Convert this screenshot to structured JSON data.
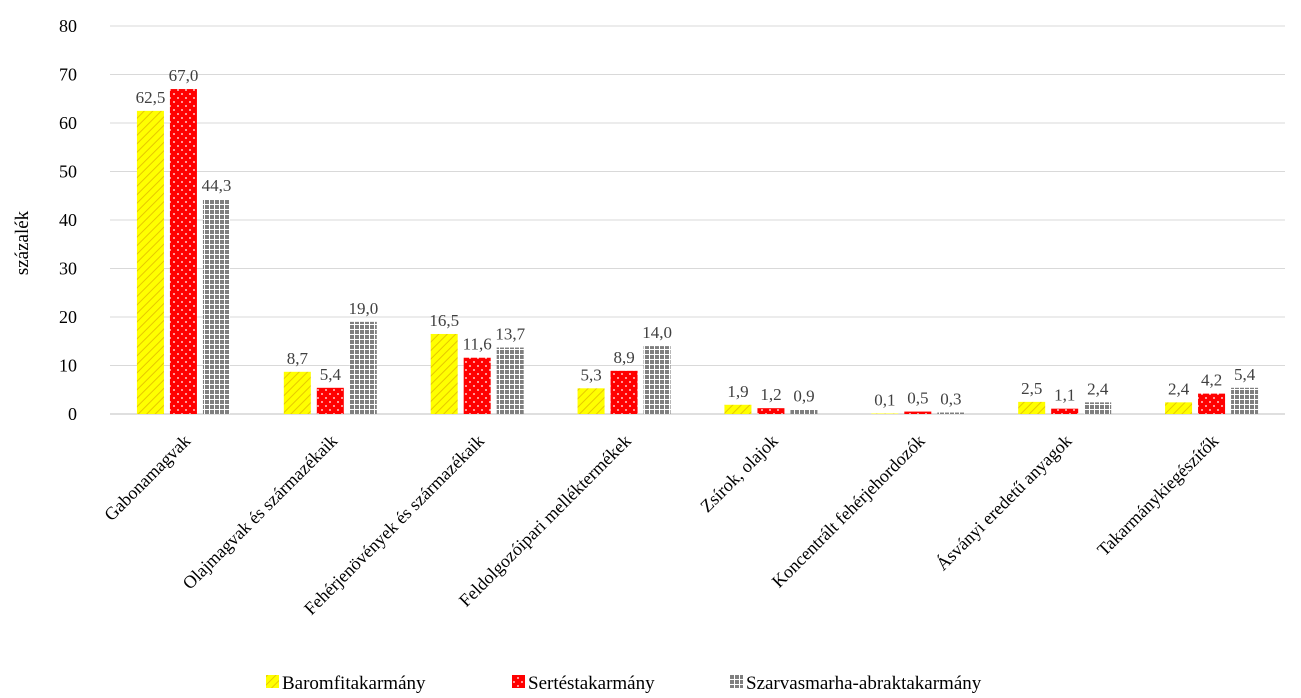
{
  "chart_data": {
    "type": "bar",
    "categories": [
      "Gabonamagvak",
      "Olajmagvak és származékaik",
      "Fehérjenövények és származékaik",
      "Feldolgozóipari melléktermékek",
      "Zsírok, olajok",
      "Koncentrált fehérjehordozók",
      "Ásványi eredetű anyagok",
      "Takarmánykiegészítők"
    ],
    "series": [
      {
        "name": "Baromfitakarmány",
        "values": [
          62.5,
          8.7,
          16.5,
          5.3,
          1.9,
          0.1,
          2.5,
          2.4
        ],
        "labels": [
          "62,5",
          "8,7",
          "16,5",
          "5,3",
          "1,9",
          "0,1",
          "2,5",
          "2,4"
        ],
        "color": "#FFFF00",
        "pattern": "diagonal-stripes"
      },
      {
        "name": "Sertéstakarmány",
        "values": [
          67.0,
          5.4,
          11.6,
          8.9,
          1.2,
          0.5,
          1.1,
          4.2
        ],
        "labels": [
          "67,0",
          "5,4",
          "11,6",
          "8,9",
          "1,2",
          "0,5",
          "1,1",
          "4,2"
        ],
        "color": "#FF0000",
        "pattern": "white-dots"
      },
      {
        "name": "Szarvasmarha-abraktakarmány",
        "values": [
          44.3,
          19.0,
          13.7,
          14.0,
          0.9,
          0.3,
          2.4,
          5.4
        ],
        "labels": [
          "44,3",
          "19,0",
          "13,7",
          "14,0",
          "0,9",
          "0,3",
          "2,4",
          "5,4"
        ],
        "color": "#7F7F7F",
        "pattern": "grid"
      }
    ],
    "yticks": [
      "0",
      "10",
      "20",
      "30",
      "40",
      "50",
      "60",
      "70",
      "80"
    ],
    "ylabel": "százalék",
    "xlabel": "",
    "ylim": [
      0,
      80
    ],
    "grid": true,
    "legend_position": "bottom"
  }
}
